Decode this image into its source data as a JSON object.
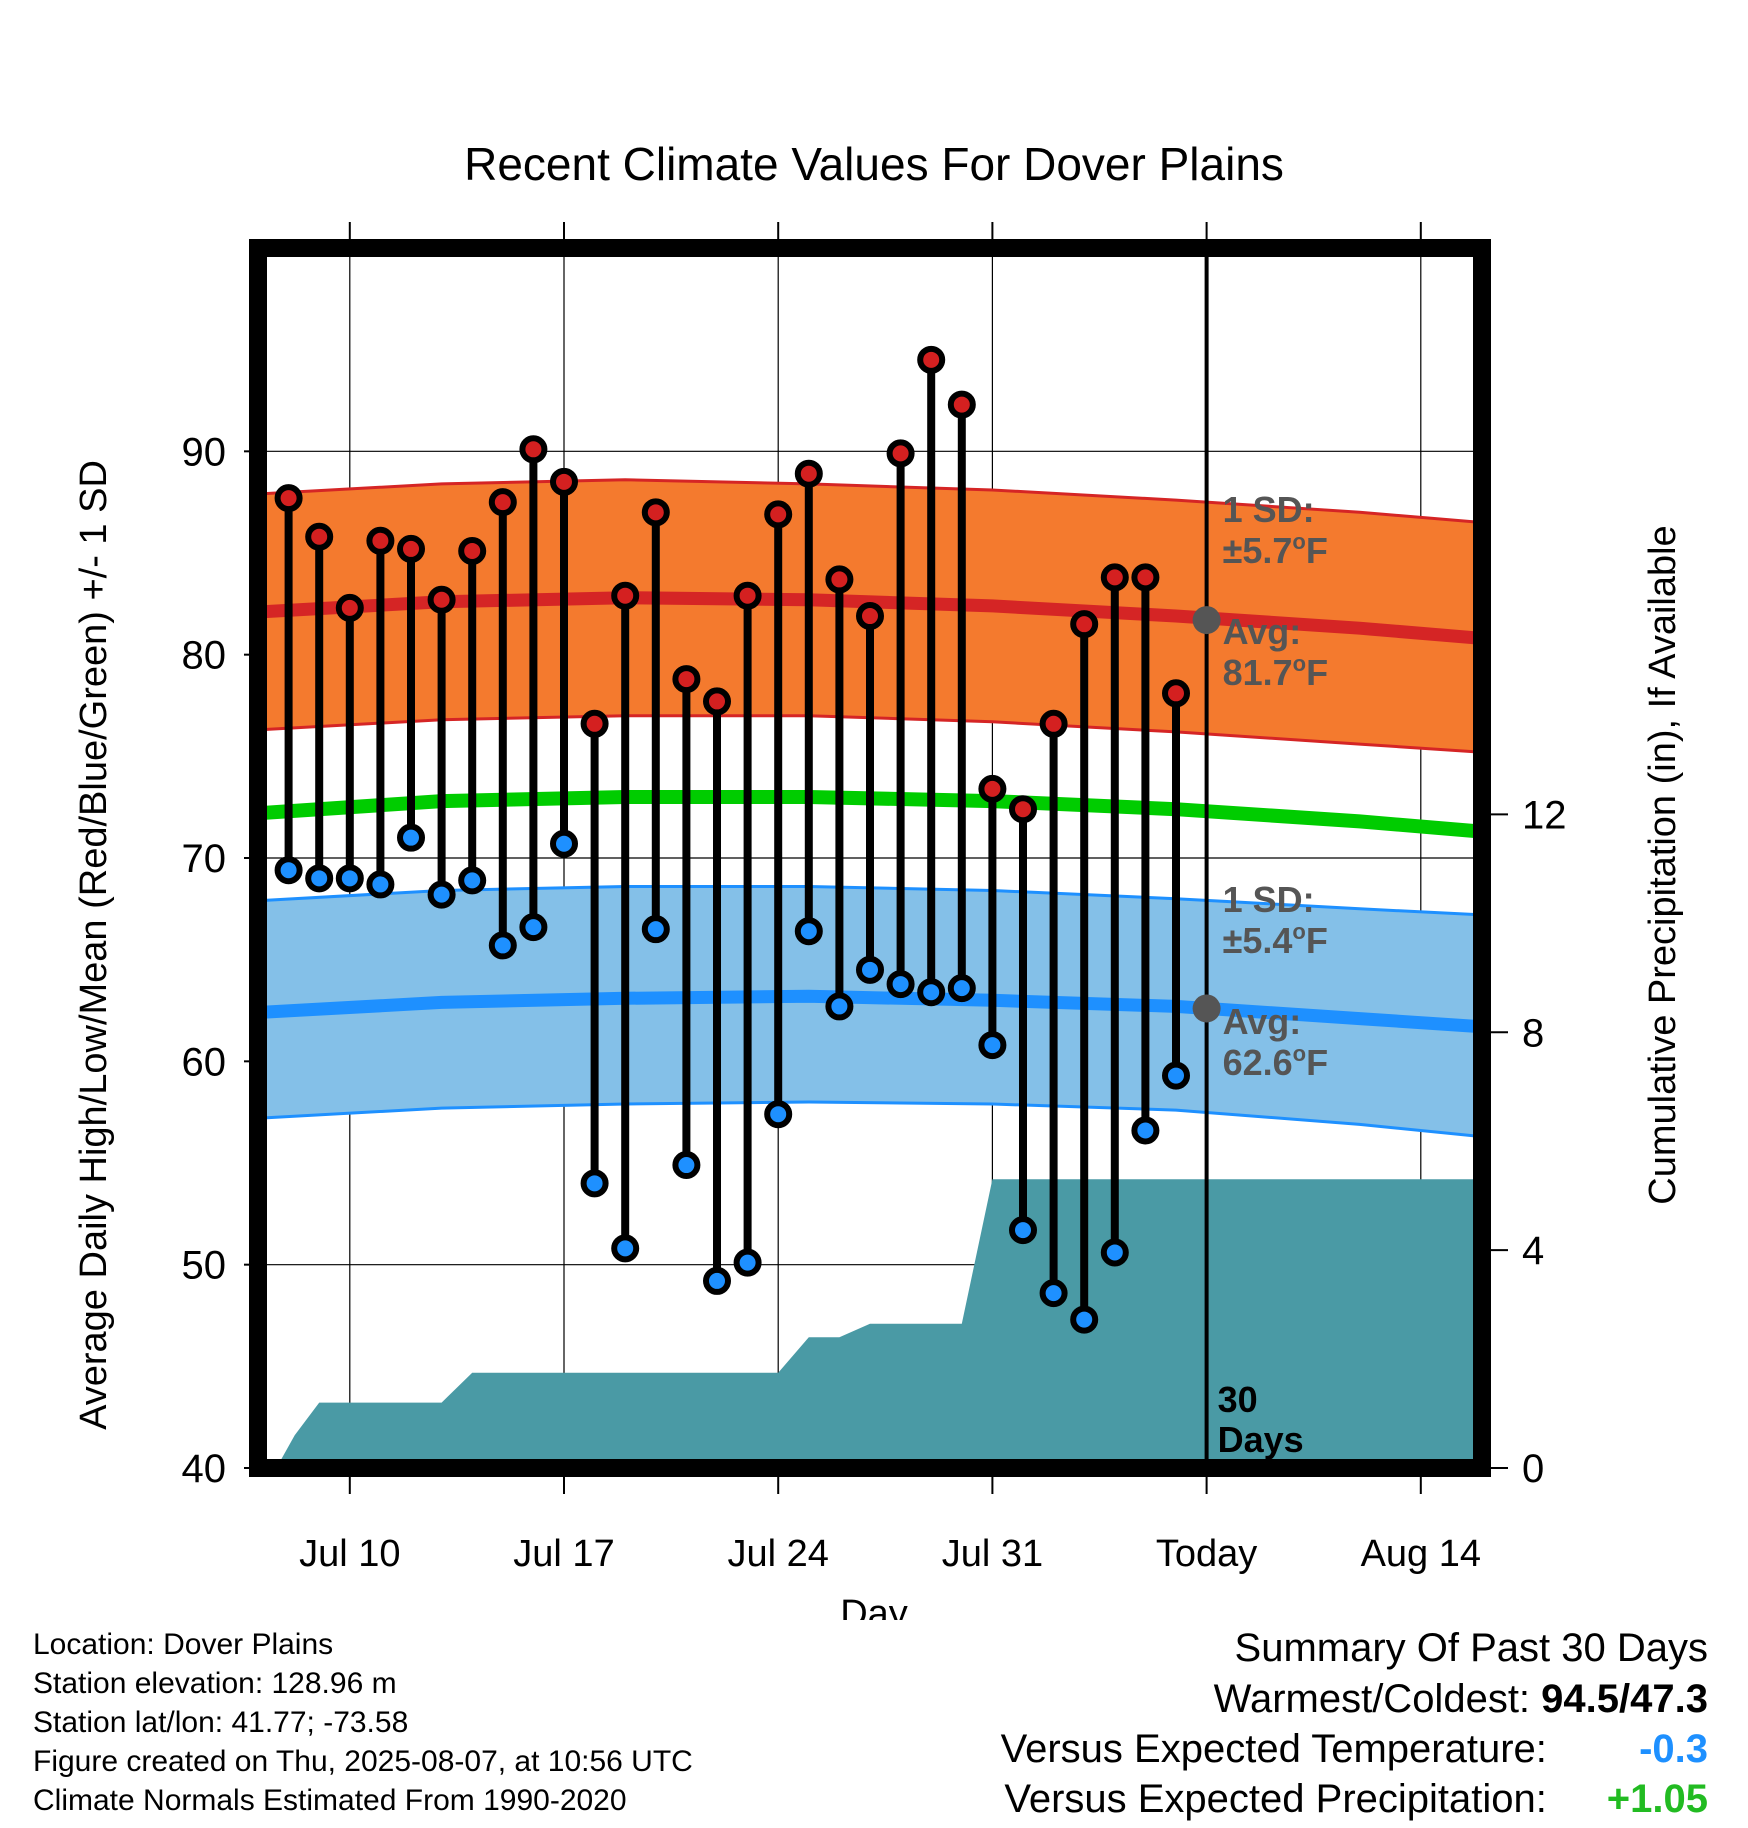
{
  "chart_data": {
    "type": "line",
    "title": "Recent Climate Values For Dover Plains",
    "xlabel": "Day",
    "ylabel": "Average Daily High/Low/Mean (Red/Blue/Green) +/- 1 SD",
    "y2label": "Cumulative Precipitation (in), If Available",
    "ylim": [
      40,
      100
    ],
    "y_ticks": [
      40,
      50,
      60,
      70,
      80,
      90
    ],
    "y2lim": [
      0,
      22.4
    ],
    "y2_ticks": [
      0,
      4,
      8,
      12
    ],
    "x_ticks": [
      {
        "day": 10,
        "label": "Jul 10"
      },
      {
        "day": 17,
        "label": "Jul 17"
      },
      {
        "day": 24,
        "label": "Jul 24"
      },
      {
        "day": 31,
        "label": "Jul 31"
      },
      {
        "day": 38,
        "label": "Today"
      },
      {
        "day": 45,
        "label": "Aug 14"
      }
    ],
    "x_range_days": [
      7,
      47
    ],
    "today_day": 38,
    "days": [
      8,
      9,
      10,
      11,
      12,
      13,
      14,
      15,
      16,
      17,
      18,
      19,
      20,
      21,
      22,
      23,
      24,
      25,
      26,
      27,
      28,
      29,
      30,
      31,
      32,
      33,
      34,
      35,
      36,
      37
    ],
    "highs": [
      87.7,
      85.8,
      82.3,
      85.6,
      85.2,
      82.7,
      85.1,
      87.5,
      90.1,
      88.5,
      76.6,
      82.9,
      87.0,
      78.8,
      77.7,
      82.9,
      86.9,
      88.9,
      83.7,
      81.9,
      89.9,
      94.5,
      92.3,
      73.4,
      72.4,
      76.6,
      81.5,
      83.8,
      83.8,
      78.1
    ],
    "lows": [
      69.4,
      69.0,
      69.0,
      68.7,
      71.0,
      68.2,
      68.9,
      65.7,
      66.6,
      70.7,
      54.0,
      50.8,
      66.5,
      54.9,
      49.2,
      50.1,
      57.4,
      66.4,
      62.7,
      64.5,
      63.8,
      63.4,
      63.6,
      60.8,
      51.7,
      48.6,
      47.3,
      50.6,
      56.6,
      59.3
    ],
    "precip_cumulative": {
      "days": [
        7.6,
        8.2,
        9.0,
        13.0,
        14.0,
        24.0,
        25.0,
        26.0,
        27.0,
        30.0,
        31.0,
        47.0
      ],
      "values": [
        0.0,
        0.6,
        1.2,
        1.2,
        1.75,
        1.75,
        2.4,
        2.4,
        2.65,
        2.65,
        5.3,
        5.3
      ]
    },
    "normals": {
      "days": [
        7,
        13,
        19,
        25,
        31,
        37,
        43,
        47
      ],
      "high_avg": [
        82.1,
        82.6,
        82.8,
        82.7,
        82.4,
        81.9,
        81.3,
        80.8
      ],
      "high_upper": [
        87.9,
        88.4,
        88.6,
        88.4,
        88.1,
        87.6,
        87.0,
        86.5
      ],
      "high_lower": [
        76.3,
        76.8,
        77.0,
        77.0,
        76.7,
        76.2,
        75.6,
        75.2
      ],
      "mean": [
        72.2,
        72.8,
        73.0,
        73.0,
        72.8,
        72.4,
        71.8,
        71.3
      ],
      "low_avg": [
        62.4,
        62.9,
        63.1,
        63.2,
        63.0,
        62.7,
        62.1,
        61.7
      ],
      "low_upper": [
        67.9,
        68.4,
        68.6,
        68.6,
        68.4,
        68.0,
        67.5,
        67.2
      ],
      "low_lower": [
        57.2,
        57.7,
        57.9,
        58.0,
        57.9,
        57.6,
        56.9,
        56.3
      ]
    },
    "annotations": {
      "high_sd_label": "1 SD:",
      "high_sd_value": "±5.7",
      "high_avg_label": "Avg:",
      "high_avg_value": "81.7",
      "low_sd_label": "1 SD:",
      "low_sd_value": "±5.4",
      "low_avg_label": "Avg:",
      "low_avg_value": "62.6",
      "degree_unit": "o",
      "temp_unit": "F",
      "days_count": "30",
      "days_word": "Days"
    },
    "colors": {
      "high_band": "#f47a2e",
      "high_line": "#d52525",
      "low_band": "#84c0e8",
      "low_line": "#1e90ff",
      "mean_line": "#00cc00",
      "precip": "#4a9aa5",
      "high_dot": "#d42020",
      "low_dot": "#1e90ff",
      "marker_grey": "#555555",
      "annotation_text": "#555555"
    }
  },
  "info": {
    "location": "Location: Dover Plains",
    "elevation": "Station elevation: 128.96 m",
    "latlon": "Station lat/lon: 41.77; -73.58",
    "created": "Figure created on Thu, 2025-08-07, at 10:56 UTC",
    "normals": "Climate Normals Estimated From 1990-2020"
  },
  "summary": {
    "title": "Summary Of Past 30 Days",
    "warm_cold_label": "Warmest/Coldest:",
    "warm_cold_value": "94.5/47.3",
    "temp_label": "Versus Expected Temperature:",
    "temp_value": "-0.3",
    "temp_color": "#1e90ff",
    "precip_label": "Versus Expected Precipitation:",
    "precip_value": "+1.05",
    "precip_color": "#22bb22"
  }
}
